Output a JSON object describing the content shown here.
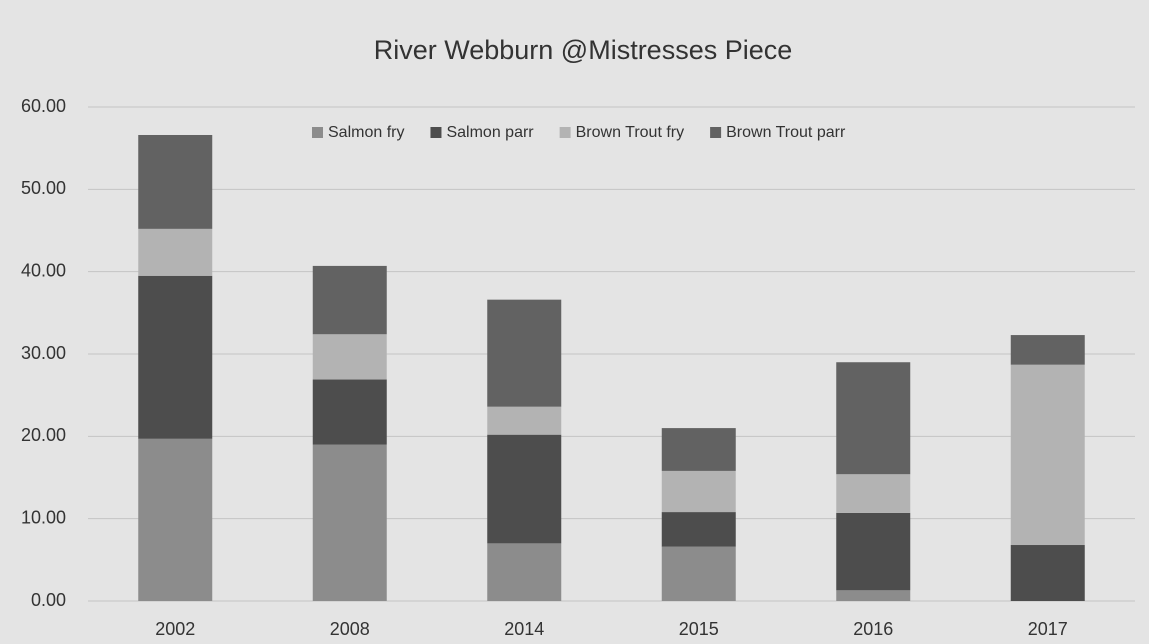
{
  "chart_data": {
    "type": "bar",
    "stacked": true,
    "title": "River Webburn @Mistresses Piece",
    "categories": [
      "2002",
      "2008",
      "2014",
      "2015",
      "2016",
      "2017"
    ],
    "series": [
      {
        "name": "Salmon fry",
        "color": "#8c8c8c",
        "values": [
          19.7,
          19.0,
          7.0,
          6.6,
          1.3,
          0
        ]
      },
      {
        "name": "Salmon parr",
        "color": "#4d4d4d",
        "values": [
          19.8,
          7.9,
          13.2,
          4.2,
          9.4,
          6.8
        ]
      },
      {
        "name": "Brown Trout fry",
        "color": "#b3b3b3",
        "values": [
          5.7,
          5.5,
          3.4,
          5.0,
          4.7,
          21.9
        ]
      },
      {
        "name": "Brown Trout parr",
        "color": "#626262",
        "values": [
          11.4,
          8.3,
          13.0,
          5.2,
          13.6,
          3.6
        ]
      }
    ],
    "ylim": [
      0,
      60
    ],
    "yticks": [
      {
        "value": 0,
        "label": "0.00"
      },
      {
        "value": 10,
        "label": "10.00"
      },
      {
        "value": 20,
        "label": "20.00"
      },
      {
        "value": 30,
        "label": "30.00"
      },
      {
        "value": 40,
        "label": "40.00"
      },
      {
        "value": 50,
        "label": "50.00"
      },
      {
        "value": 60,
        "label": "60.00"
      }
    ],
    "grid": true,
    "legend": "top"
  }
}
